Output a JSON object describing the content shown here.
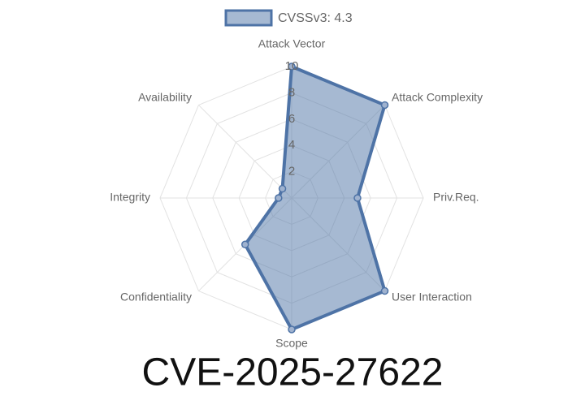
{
  "chart_data": {
    "type": "radar",
    "title": "CVE-2025-27622",
    "categories": [
      "Attack Vector",
      "Attack Complexity",
      "Priv.Req.",
      "User Interaction",
      "Scope",
      "Confidentiality",
      "Integrity",
      "Availability"
    ],
    "series": [
      {
        "name": "CVSSv3: 4.3",
        "color": "#4e73a6",
        "values": [
          10,
          10,
          5,
          10,
          10,
          5,
          1,
          1
        ]
      }
    ],
    "rlim": [
      0,
      10
    ],
    "rticks": [
      2,
      4,
      6,
      8,
      10
    ],
    "grid": true,
    "legend": "top"
  }
}
